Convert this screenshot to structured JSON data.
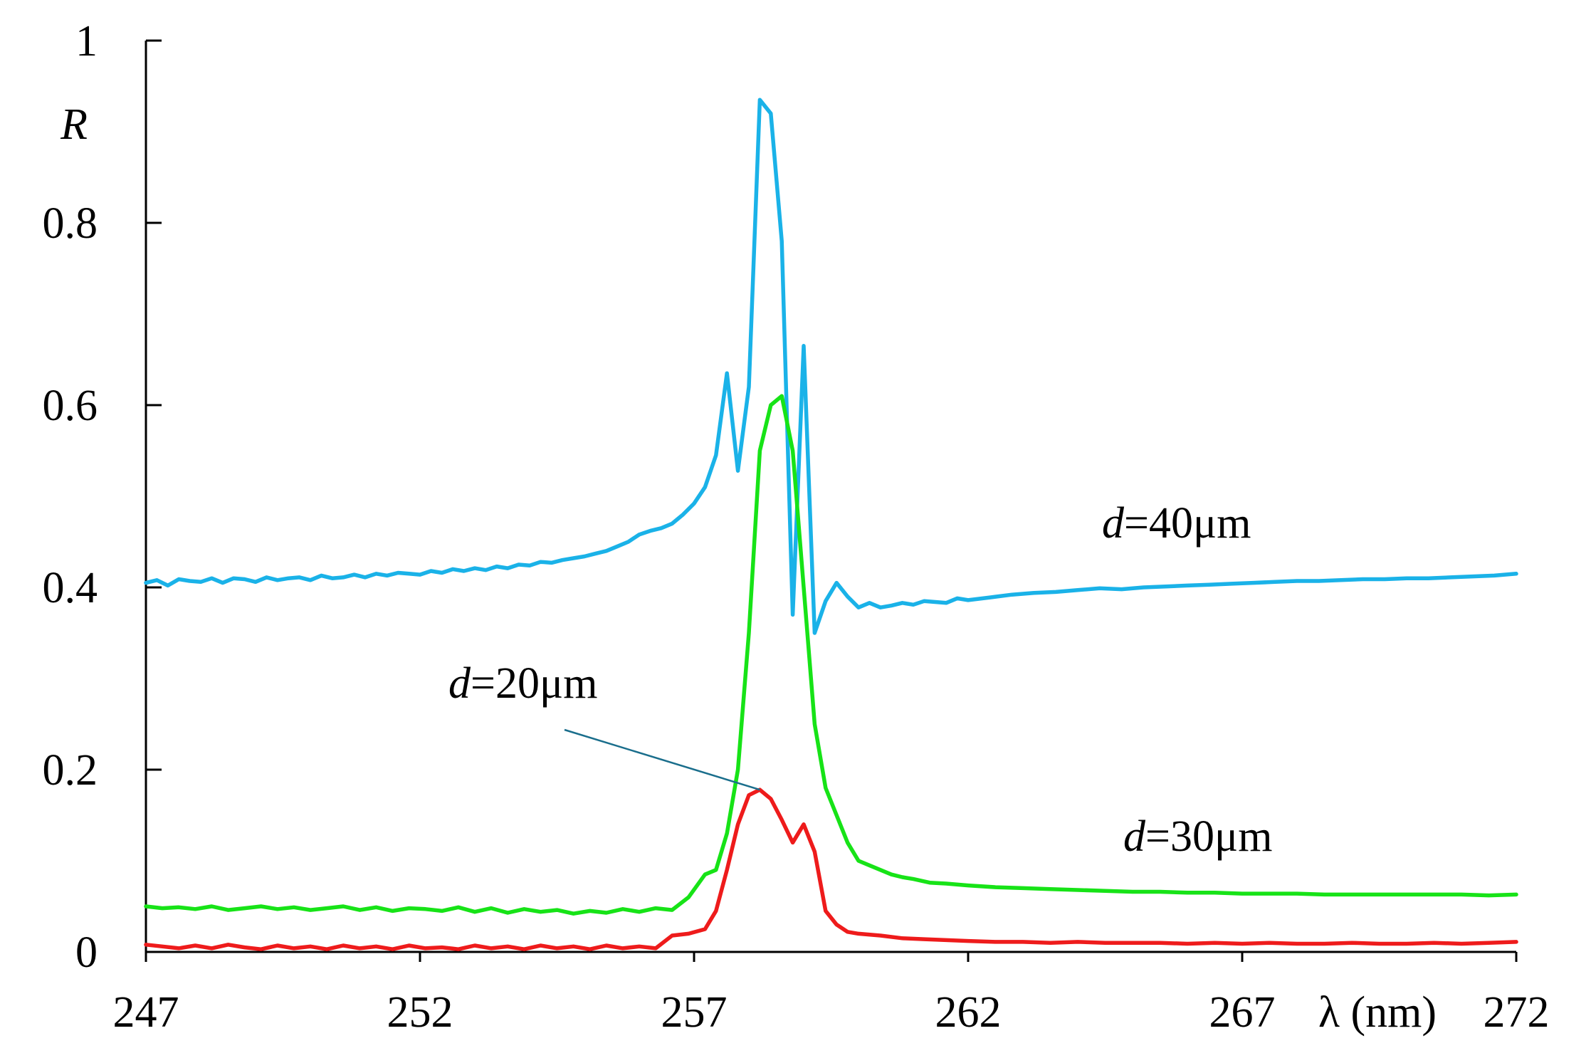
{
  "chart_data": {
    "type": "line",
    "ylabel": "R",
    "xlabel": "λ (nm)",
    "xlim": [
      247,
      272
    ],
    "ylim": [
      0,
      1
    ],
    "x_ticks": [
      247,
      252,
      257,
      262,
      267,
      272
    ],
    "y_ticks": [
      0,
      0.2,
      0.4,
      0.6,
      0.8,
      1
    ],
    "x_tick_labels": [
      "247",
      "252",
      "257",
      "262",
      "267",
      "272"
    ],
    "y_tick_labels": [
      "0",
      "0.2",
      "0.4",
      "0.6",
      "0.8",
      "1"
    ],
    "grid": false,
    "series": [
      {
        "name": "d=40μm",
        "color": "#1ab2e8",
        "x": [
          247.0,
          247.2,
          247.4,
          247.6,
          247.8,
          248.0,
          248.2,
          248.4,
          248.6,
          248.8,
          249.0,
          249.2,
          249.4,
          249.6,
          249.8,
          250.0,
          250.2,
          250.4,
          250.6,
          250.8,
          251.0,
          251.2,
          251.4,
          251.6,
          251.8,
          252.0,
          252.2,
          252.4,
          252.6,
          252.8,
          253.0,
          253.2,
          253.4,
          253.6,
          253.8,
          254.0,
          254.2,
          254.4,
          254.6,
          254.8,
          255.0,
          255.2,
          255.4,
          255.6,
          255.8,
          256.0,
          256.2,
          256.4,
          256.6,
          256.8,
          257.0,
          257.2,
          257.4,
          257.6,
          257.8,
          258.0,
          258.2,
          258.4,
          258.6,
          258.8,
          259.0,
          259.2,
          259.4,
          259.6,
          259.8,
          260.0,
          260.2,
          260.4,
          260.6,
          260.8,
          261.0,
          261.2,
          261.4,
          261.6,
          261.8,
          262.0,
          262.4,
          262.8,
          263.2,
          263.6,
          264.0,
          264.4,
          264.8,
          265.2,
          265.6,
          266.0,
          266.4,
          266.8,
          267.2,
          267.6,
          268.0,
          268.4,
          268.8,
          269.2,
          269.6,
          270.0,
          270.4,
          270.8,
          271.2,
          271.6,
          272.0
        ],
        "values": [
          0.405,
          0.408,
          0.402,
          0.409,
          0.407,
          0.406,
          0.41,
          0.405,
          0.41,
          0.409,
          0.406,
          0.411,
          0.408,
          0.41,
          0.411,
          0.408,
          0.413,
          0.41,
          0.411,
          0.414,
          0.411,
          0.415,
          0.413,
          0.416,
          0.415,
          0.414,
          0.418,
          0.416,
          0.42,
          0.418,
          0.421,
          0.419,
          0.423,
          0.421,
          0.425,
          0.424,
          0.428,
          0.427,
          0.43,
          0.432,
          0.434,
          0.437,
          0.44,
          0.445,
          0.45,
          0.458,
          0.462,
          0.465,
          0.47,
          0.48,
          0.492,
          0.51,
          0.545,
          0.635,
          0.528,
          0.62,
          0.935,
          0.92,
          0.78,
          0.37,
          0.665,
          0.35,
          0.385,
          0.405,
          0.39,
          0.378,
          0.383,
          0.378,
          0.38,
          0.383,
          0.381,
          0.385,
          0.384,
          0.383,
          0.388,
          0.386,
          0.389,
          0.392,
          0.394,
          0.395,
          0.397,
          0.399,
          0.398,
          0.4,
          0.401,
          0.402,
          0.403,
          0.404,
          0.405,
          0.406,
          0.407,
          0.407,
          0.408,
          0.409,
          0.409,
          0.41,
          0.41,
          0.411,
          0.412,
          0.413,
          0.415
        ]
      },
      {
        "name": "d=30μm",
        "color": "#17e317",
        "x": [
          247.0,
          247.3,
          247.6,
          247.9,
          248.2,
          248.5,
          248.8,
          249.1,
          249.4,
          249.7,
          250.0,
          250.3,
          250.6,
          250.9,
          251.2,
          251.5,
          251.8,
          252.1,
          252.4,
          252.7,
          253.0,
          253.3,
          253.6,
          253.9,
          254.2,
          254.5,
          254.8,
          255.1,
          255.4,
          255.7,
          256.0,
          256.3,
          256.6,
          256.9,
          257.2,
          257.4,
          257.6,
          257.8,
          258.0,
          258.2,
          258.4,
          258.6,
          258.8,
          259.0,
          259.2,
          259.4,
          259.6,
          259.8,
          260.0,
          260.2,
          260.4,
          260.6,
          260.8,
          261.0,
          261.3,
          261.6,
          262.0,
          262.5,
          263.0,
          263.5,
          264.0,
          264.5,
          265.0,
          265.5,
          266.0,
          266.5,
          267.0,
          267.5,
          268.0,
          268.5,
          269.0,
          269.5,
          270.0,
          270.5,
          271.0,
          271.5,
          272.0
        ],
        "values": [
          0.05,
          0.048,
          0.049,
          0.047,
          0.05,
          0.046,
          0.048,
          0.05,
          0.047,
          0.049,
          0.046,
          0.048,
          0.05,
          0.046,
          0.049,
          0.045,
          0.048,
          0.047,
          0.045,
          0.049,
          0.044,
          0.048,
          0.043,
          0.047,
          0.044,
          0.046,
          0.042,
          0.045,
          0.043,
          0.047,
          0.044,
          0.048,
          0.046,
          0.06,
          0.085,
          0.09,
          0.13,
          0.2,
          0.35,
          0.55,
          0.6,
          0.61,
          0.55,
          0.4,
          0.25,
          0.18,
          0.15,
          0.12,
          0.1,
          0.095,
          0.09,
          0.085,
          0.082,
          0.08,
          0.076,
          0.075,
          0.073,
          0.071,
          0.07,
          0.069,
          0.068,
          0.067,
          0.066,
          0.066,
          0.065,
          0.065,
          0.064,
          0.064,
          0.064,
          0.063,
          0.063,
          0.063,
          0.063,
          0.063,
          0.063,
          0.062,
          0.063
        ]
      },
      {
        "name": "d=20μm",
        "color": "#ee1b1b",
        "x": [
          247.0,
          247.3,
          247.6,
          247.9,
          248.2,
          248.5,
          248.8,
          249.1,
          249.4,
          249.7,
          250.0,
          250.3,
          250.6,
          250.9,
          251.2,
          251.5,
          251.8,
          252.1,
          252.4,
          252.7,
          253.0,
          253.3,
          253.6,
          253.9,
          254.2,
          254.5,
          254.8,
          255.1,
          255.4,
          255.7,
          256.0,
          256.3,
          256.6,
          256.9,
          257.2,
          257.4,
          257.6,
          257.8,
          258.0,
          258.2,
          258.4,
          258.6,
          258.8,
          259.0,
          259.2,
          259.4,
          259.6,
          259.8,
          260.0,
          260.4,
          260.8,
          261.2,
          261.6,
          262.0,
          262.5,
          263.0,
          263.5,
          264.0,
          264.5,
          265.0,
          265.5,
          266.0,
          266.5,
          267.0,
          267.5,
          268.0,
          268.5,
          269.0,
          269.5,
          270.0,
          270.5,
          271.0,
          271.5,
          272.0
        ],
        "values": [
          0.008,
          0.006,
          0.004,
          0.007,
          0.004,
          0.008,
          0.005,
          0.003,
          0.007,
          0.004,
          0.006,
          0.003,
          0.007,
          0.004,
          0.006,
          0.003,
          0.007,
          0.004,
          0.005,
          0.003,
          0.007,
          0.004,
          0.006,
          0.003,
          0.007,
          0.004,
          0.006,
          0.003,
          0.007,
          0.004,
          0.006,
          0.004,
          0.018,
          0.02,
          0.025,
          0.045,
          0.09,
          0.14,
          0.172,
          0.178,
          0.168,
          0.145,
          0.12,
          0.14,
          0.11,
          0.045,
          0.03,
          0.022,
          0.02,
          0.018,
          0.015,
          0.014,
          0.013,
          0.012,
          0.011,
          0.011,
          0.01,
          0.011,
          0.01,
          0.01,
          0.01,
          0.009,
          0.01,
          0.009,
          0.01,
          0.009,
          0.009,
          0.01,
          0.009,
          0.009,
          0.01,
          0.009,
          0.01,
          0.011
        ]
      }
    ],
    "annotations": [
      {
        "italic": "d",
        "text": "=40μm"
      },
      {
        "italic": "d",
        "text": "=30μm"
      },
      {
        "italic": "d",
        "text": "=20μm",
        "leader_to": [
          258.2,
          0.178
        ]
      }
    ]
  }
}
